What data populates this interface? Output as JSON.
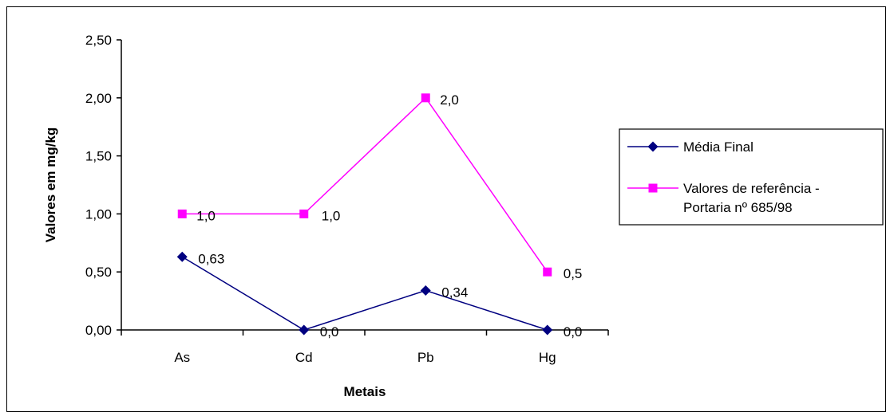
{
  "chart_data": {
    "type": "line",
    "title": "",
    "xlabel": "Metais",
    "ylabel": "Valores em mg/kg",
    "categories": [
      "As",
      "Cd",
      "Pb",
      "Hg"
    ],
    "ylim": [
      0,
      2.5
    ],
    "yticks": [
      0,
      0.5,
      1.0,
      1.5,
      2.0,
      2.5
    ],
    "ytick_labels": [
      "0,00",
      "0,50",
      "1,00",
      "1,50",
      "2,00",
      "2,50"
    ],
    "grid": false,
    "legend_position": "right",
    "series": [
      {
        "name": "Média Final",
        "values": [
          0.63,
          0.0,
          0.34,
          0.0
        ],
        "labels": [
          "0,63",
          "0,0",
          "0,34",
          "0,0"
        ],
        "color": "#000080",
        "marker": "diamond"
      },
      {
        "name": "Valores de referência - Portaria nº 685/98",
        "name_lines": [
          "Valores de referência -",
          "Portaria nº 685/98"
        ],
        "values": [
          1.0,
          1.0,
          2.0,
          0.5
        ],
        "labels": [
          "1,0",
          "1,0",
          "2,0",
          "0,5"
        ],
        "color": "#FF00FF",
        "marker": "square"
      }
    ]
  }
}
